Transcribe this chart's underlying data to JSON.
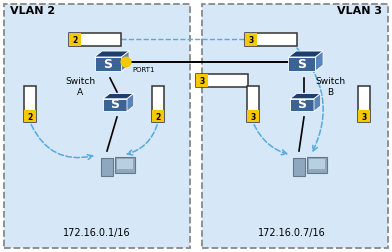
{
  "vlan2_label": "VLAN 2",
  "vlan3_label": "VLAN 3",
  "switch_a_label": "Switch\nA",
  "switch_b_label": "Switch\nB",
  "port1_label": "PORT1",
  "ip_left": "172.16.0.1/16",
  "ip_right": "172.16.0.7/16",
  "vlan2_color": "#d6e8f7",
  "vlan3_color": "#d6e8f7",
  "switch_dark": "#1e3f6e",
  "switch_mid": "#3b6496",
  "switch_light": "#5b84b8",
  "yellow_tag": "#f5c800",
  "arrow_color": "#55aadd",
  "tag2_label": "2",
  "tag3_label": "3",
  "fig_w": 3.92,
  "fig_h": 2.53,
  "dpi": 100
}
